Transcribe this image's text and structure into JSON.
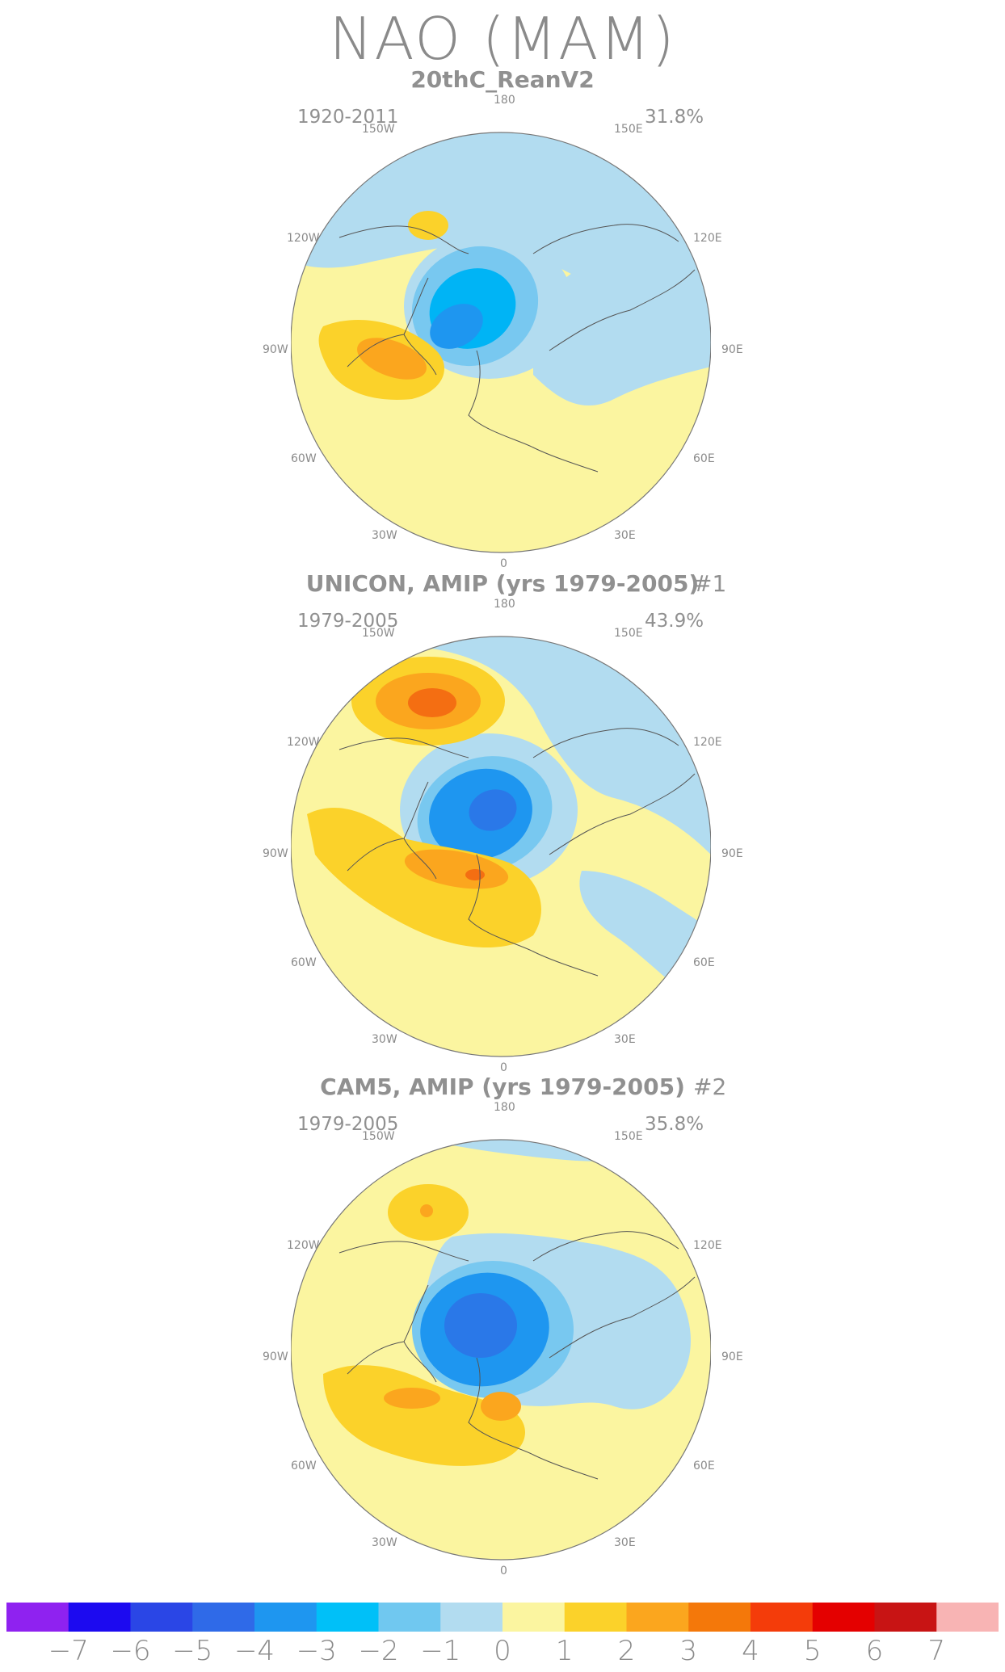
{
  "title": "NAO (MAM)",
  "colors": {
    "land_outline": "#555555",
    "circle_outline": "#777777",
    "yellow": "#fbf5a0",
    "light_blue": "#b2dcf0",
    "blue_1": "#78c8f0",
    "blue_2": "#00b4f5",
    "blue_3": "#1e96f0",
    "blue_4": "#2a78e8",
    "orange_1": "#fbd22a",
    "orange_2": "#fba61e",
    "orange_3": "#f46e12"
  },
  "longitude_labels": [
    "180",
    "150E",
    "120E",
    "90E",
    "60E",
    "30E",
    "0",
    "30W",
    "60W",
    "90W",
    "120W",
    "150W"
  ],
  "panels": [
    {
      "id": "reanalysis",
      "title": "20thC_ReanV2",
      "index_label": "",
      "years": "1920-2011",
      "variance_pct": "31.8%"
    },
    {
      "id": "unicon",
      "title": "UNICON, AMIP (yrs 1979-2005)",
      "index_label": "#1",
      "years": "1979-2005",
      "variance_pct": "43.9%"
    },
    {
      "id": "cam5",
      "title": "CAM5, AMIP (yrs 1979-2005)",
      "index_label": "#2",
      "years": "1979-2005",
      "variance_pct": "35.8%"
    }
  ],
  "colorbar": {
    "labels": [
      "-7",
      "-6",
      "-5",
      "-4",
      "-3",
      "-2",
      "-1",
      "0",
      "1",
      "2",
      "3",
      "4",
      "5",
      "6",
      "7"
    ],
    "colors": [
      "#8f22f0",
      "#1c0af0",
      "#2a46e6",
      "#2f6ae8",
      "#1e96f0",
      "#00c0f8",
      "#70c8f0",
      "#b2dcf0",
      "#fbf5a0",
      "#fbd22a",
      "#fba61e",
      "#f4780a",
      "#f43c0a",
      "#e40000",
      "#c81414",
      "#f8b4b4"
    ]
  }
}
